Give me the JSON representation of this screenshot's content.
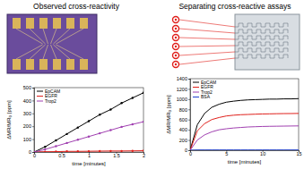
{
  "chart_data": [
    {
      "type": "line",
      "title": "Observed cross-reactivity",
      "x_label": "time [minutes]",
      "y_label": "ΔMR/MR₀ [ppm]",
      "x": [
        0,
        0.2,
        0.4,
        0.6,
        0.8,
        1,
        1.2,
        1.4,
        1.6,
        1.8,
        2
      ],
      "series": [
        {
          "name": "EpCAM",
          "color": "#000000",
          "marker": "o",
          "values": [
            0,
            40,
            90,
            140,
            190,
            240,
            290,
            330,
            380,
            420,
            460
          ]
        },
        {
          "name": "EGFR",
          "color": "#e0201b",
          "marker": "o",
          "values": [
            0,
            2,
            3,
            5,
            5,
            6,
            7,
            8,
            8,
            9,
            10
          ]
        },
        {
          "name": "Trop2",
          "color": "#a03fb0",
          "marker": "o",
          "values": [
            0,
            20,
            45,
            70,
            95,
            120,
            145,
            170,
            195,
            215,
            235
          ]
        }
      ],
      "xlim": [
        0,
        2
      ],
      "xticks": [
        0,
        0.5,
        1,
        1.5,
        2
      ],
      "ylim": [
        0,
        500
      ],
      "yticks": [
        0,
        100,
        200,
        300,
        400,
        500
      ],
      "legend": "upper left"
    },
    {
      "type": "line",
      "title": "Separating cross-reactive assays",
      "x_label": "time [minutes]",
      "y_label": "ΔMR/MR₀ [ppm]",
      "x": [
        0,
        1,
        2,
        3,
        4,
        5,
        6,
        7,
        8,
        9,
        10,
        11,
        12,
        13,
        14,
        15
      ],
      "series": [
        {
          "name": "EpCAM",
          "color": "#000000",
          "values": [
            0,
            500,
            720,
            840,
            900,
            940,
            960,
            975,
            985,
            990,
            995,
            1000,
            1000,
            1005,
            1005,
            1010
          ]
        },
        {
          "name": "EGFR",
          "color": "#e0201b",
          "values": [
            0,
            380,
            520,
            600,
            640,
            670,
            685,
            695,
            700,
            705,
            710,
            712,
            715,
            717,
            718,
            720
          ]
        },
        {
          "name": "Trop2",
          "color": "#a03fb0",
          "values": [
            0,
            200,
            300,
            360,
            400,
            420,
            435,
            445,
            455,
            460,
            465,
            468,
            470,
            472,
            474,
            476
          ]
        },
        {
          "name": "BSA",
          "color": "#2040d0",
          "values": [
            0,
            5,
            5,
            5,
            5,
            5,
            5,
            5,
            5,
            5,
            5,
            5,
            5,
            5,
            5,
            5
          ]
        }
      ],
      "xlim": [
        0,
        15
      ],
      "xticks": [
        0,
        5,
        10,
        15
      ],
      "ylim": [
        0,
        1400
      ],
      "yticks": [
        0,
        200,
        400,
        600,
        800,
        1000,
        1200,
        1400
      ],
      "legend": "upper left"
    }
  ]
}
